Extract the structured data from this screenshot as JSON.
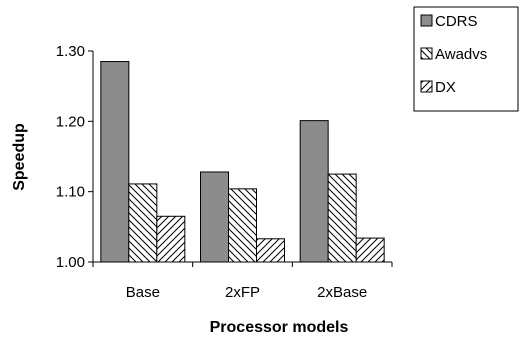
{
  "chart_data": {
    "type": "bar",
    "categories": [
      "Base",
      "2xFP",
      "2xBase"
    ],
    "series": [
      {
        "name": "CDRS",
        "values": [
          1.285,
          1.128,
          1.201
        ]
      },
      {
        "name": "Awadvs",
        "values": [
          1.111,
          1.104,
          1.125
        ]
      },
      {
        "name": "DX",
        "values": [
          1.065,
          1.033,
          1.034
        ]
      }
    ],
    "xlabel": "Processor models",
    "ylabel": "Speedup",
    "ylim": [
      1.0,
      1.3
    ],
    "yticks": [
      "1.00",
      "1.10",
      "1.20",
      "1.30"
    ],
    "grid": false,
    "legend": "top-right",
    "colors": {
      "CDRS": "#8c8c8c",
      "Awadvs": "#ffffff",
      "DX": "#ffffff",
      "stroke": "#000000"
    },
    "patterns": {
      "CDRS": "solid",
      "Awadvs": "backslash-hatch",
      "DX": "slash-hatch"
    }
  }
}
